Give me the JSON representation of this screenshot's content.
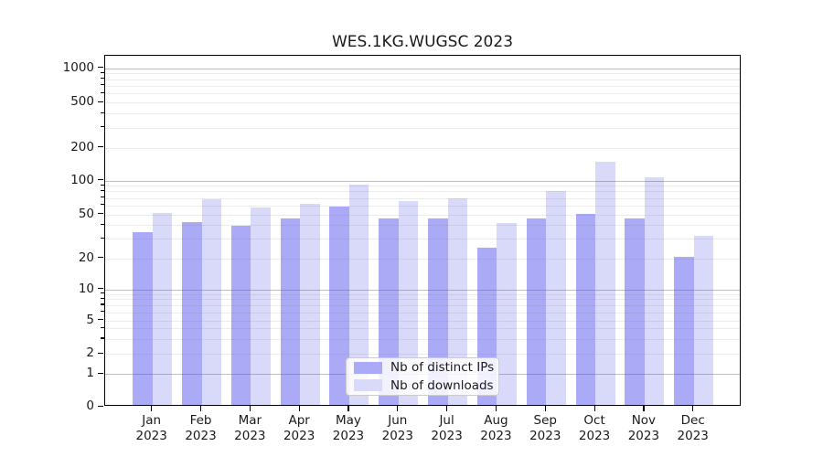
{
  "chart_data": {
    "type": "bar",
    "title": "WES.1KG.WUGSC 2023",
    "categories": [
      "Jan 2023",
      "Feb 2023",
      "Mar 2023",
      "Apr 2023",
      "May 2023",
      "Jun 2023",
      "Jul 2023",
      "Aug 2023",
      "Sep 2023",
      "Oct 2023",
      "Nov 2023",
      "Dec 2023"
    ],
    "series": [
      {
        "name": "Nb of distinct IPs",
        "color": "#aaaaf7",
        "values": [
          33,
          41,
          38,
          44,
          56,
          44,
          44,
          24,
          44,
          49,
          44,
          20
        ]
      },
      {
        "name": "Nb of downloads",
        "color": "#d9d9f9",
        "values": [
          50,
          66,
          55,
          60,
          88,
          63,
          67,
          40,
          78,
          143,
          102,
          31
        ]
      }
    ],
    "yscale": "symlog",
    "y_ticks": [
      0,
      1,
      2,
      5,
      10,
      20,
      50,
      100,
      200,
      500,
      1000
    ],
    "y_major_ticks": [
      1,
      10,
      100,
      1000
    ],
    "ylim": [
      0,
      1400
    ],
    "grid": "on",
    "legend_position": "lower center"
  },
  "colors": {
    "background": "#ffffff",
    "spine": "#000000",
    "major_grid": "#bdbdbd",
    "minor_grid": "#ebebeb",
    "text": "#1a1a1a"
  }
}
